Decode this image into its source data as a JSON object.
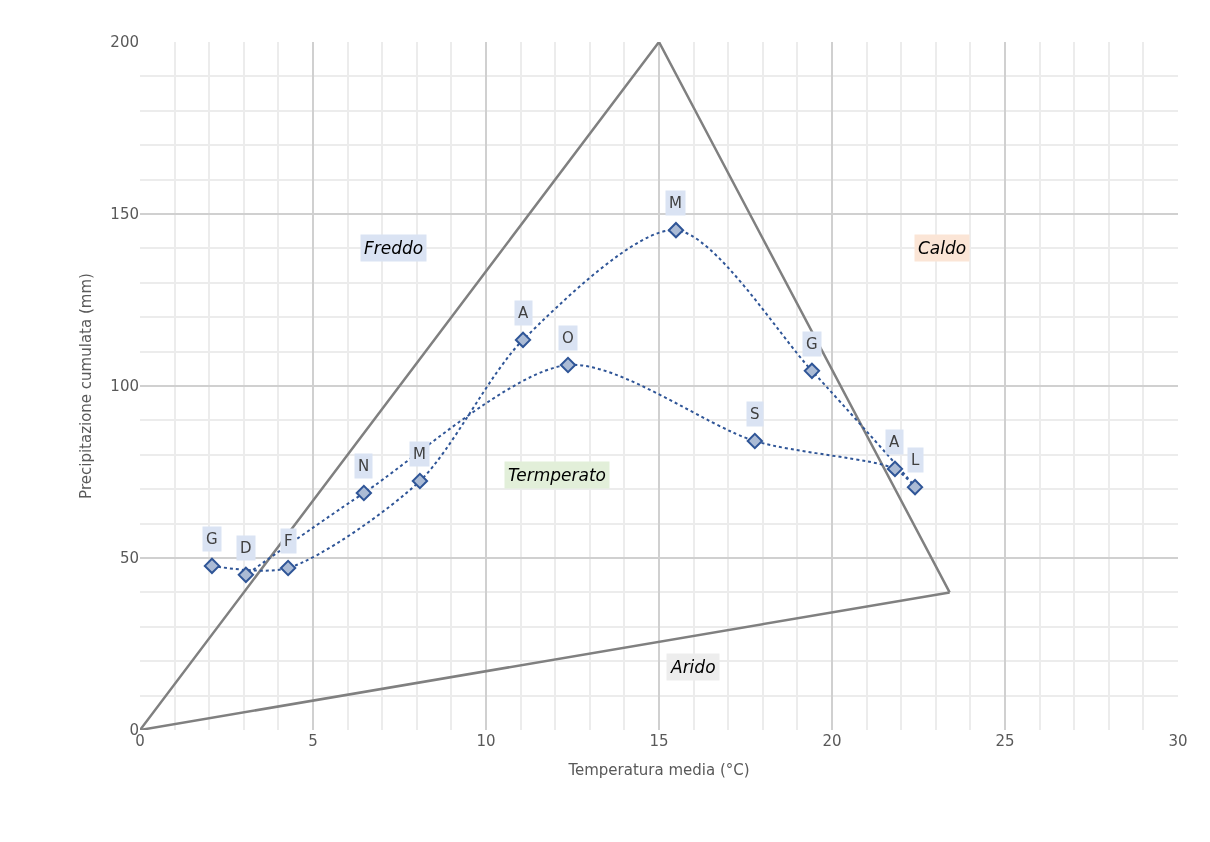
{
  "chart_data": {
    "type": "line",
    "xlabel": "Temperatura media (°C)",
    "ylabel": "Precipitazione cumulata (mm)",
    "xlim": [
      0,
      30
    ],
    "xticks": [
      0,
      5,
      10,
      15,
      20,
      25,
      30
    ],
    "ylim": [
      0,
      200
    ],
    "yticks": [
      0,
      50,
      100,
      150,
      200
    ],
    "grid": true,
    "series": [
      {
        "color": "#808080",
        "x": [
          0,
          15,
          23.4
        ],
        "values": [
          0,
          200,
          40
        ],
        "line_style": "solid",
        "marker": "none"
      },
      {
        "color": "#808080",
        "x": [
          0,
          23.4
        ],
        "values": [
          0,
          40
        ],
        "line_style": "solid",
        "marker": "none"
      },
      {
        "color": "#2f5597",
        "x": [
          2.08,
          4.28,
          8.09,
          11.07,
          15.49,
          19.42,
          22.4,
          21.82,
          17.77,
          12.37,
          6.47,
          3.06
        ],
        "values": [
          47.7,
          47.1,
          72.4,
          113.4,
          145.3,
          104.4,
          70.6,
          75.9,
          84.0,
          106.1,
          68.9,
          45.1
        ],
        "value_labels": [
          "G",
          "F",
          "M",
          "A",
          "M",
          "G",
          "L",
          "A",
          "S",
          "O",
          "N",
          "D"
        ],
        "line_style": "dotted",
        "marker": "diamond"
      }
    ],
    "annotations": [
      "Freddo",
      "Caldo",
      "Termperato",
      "Arido"
    ]
  }
}
